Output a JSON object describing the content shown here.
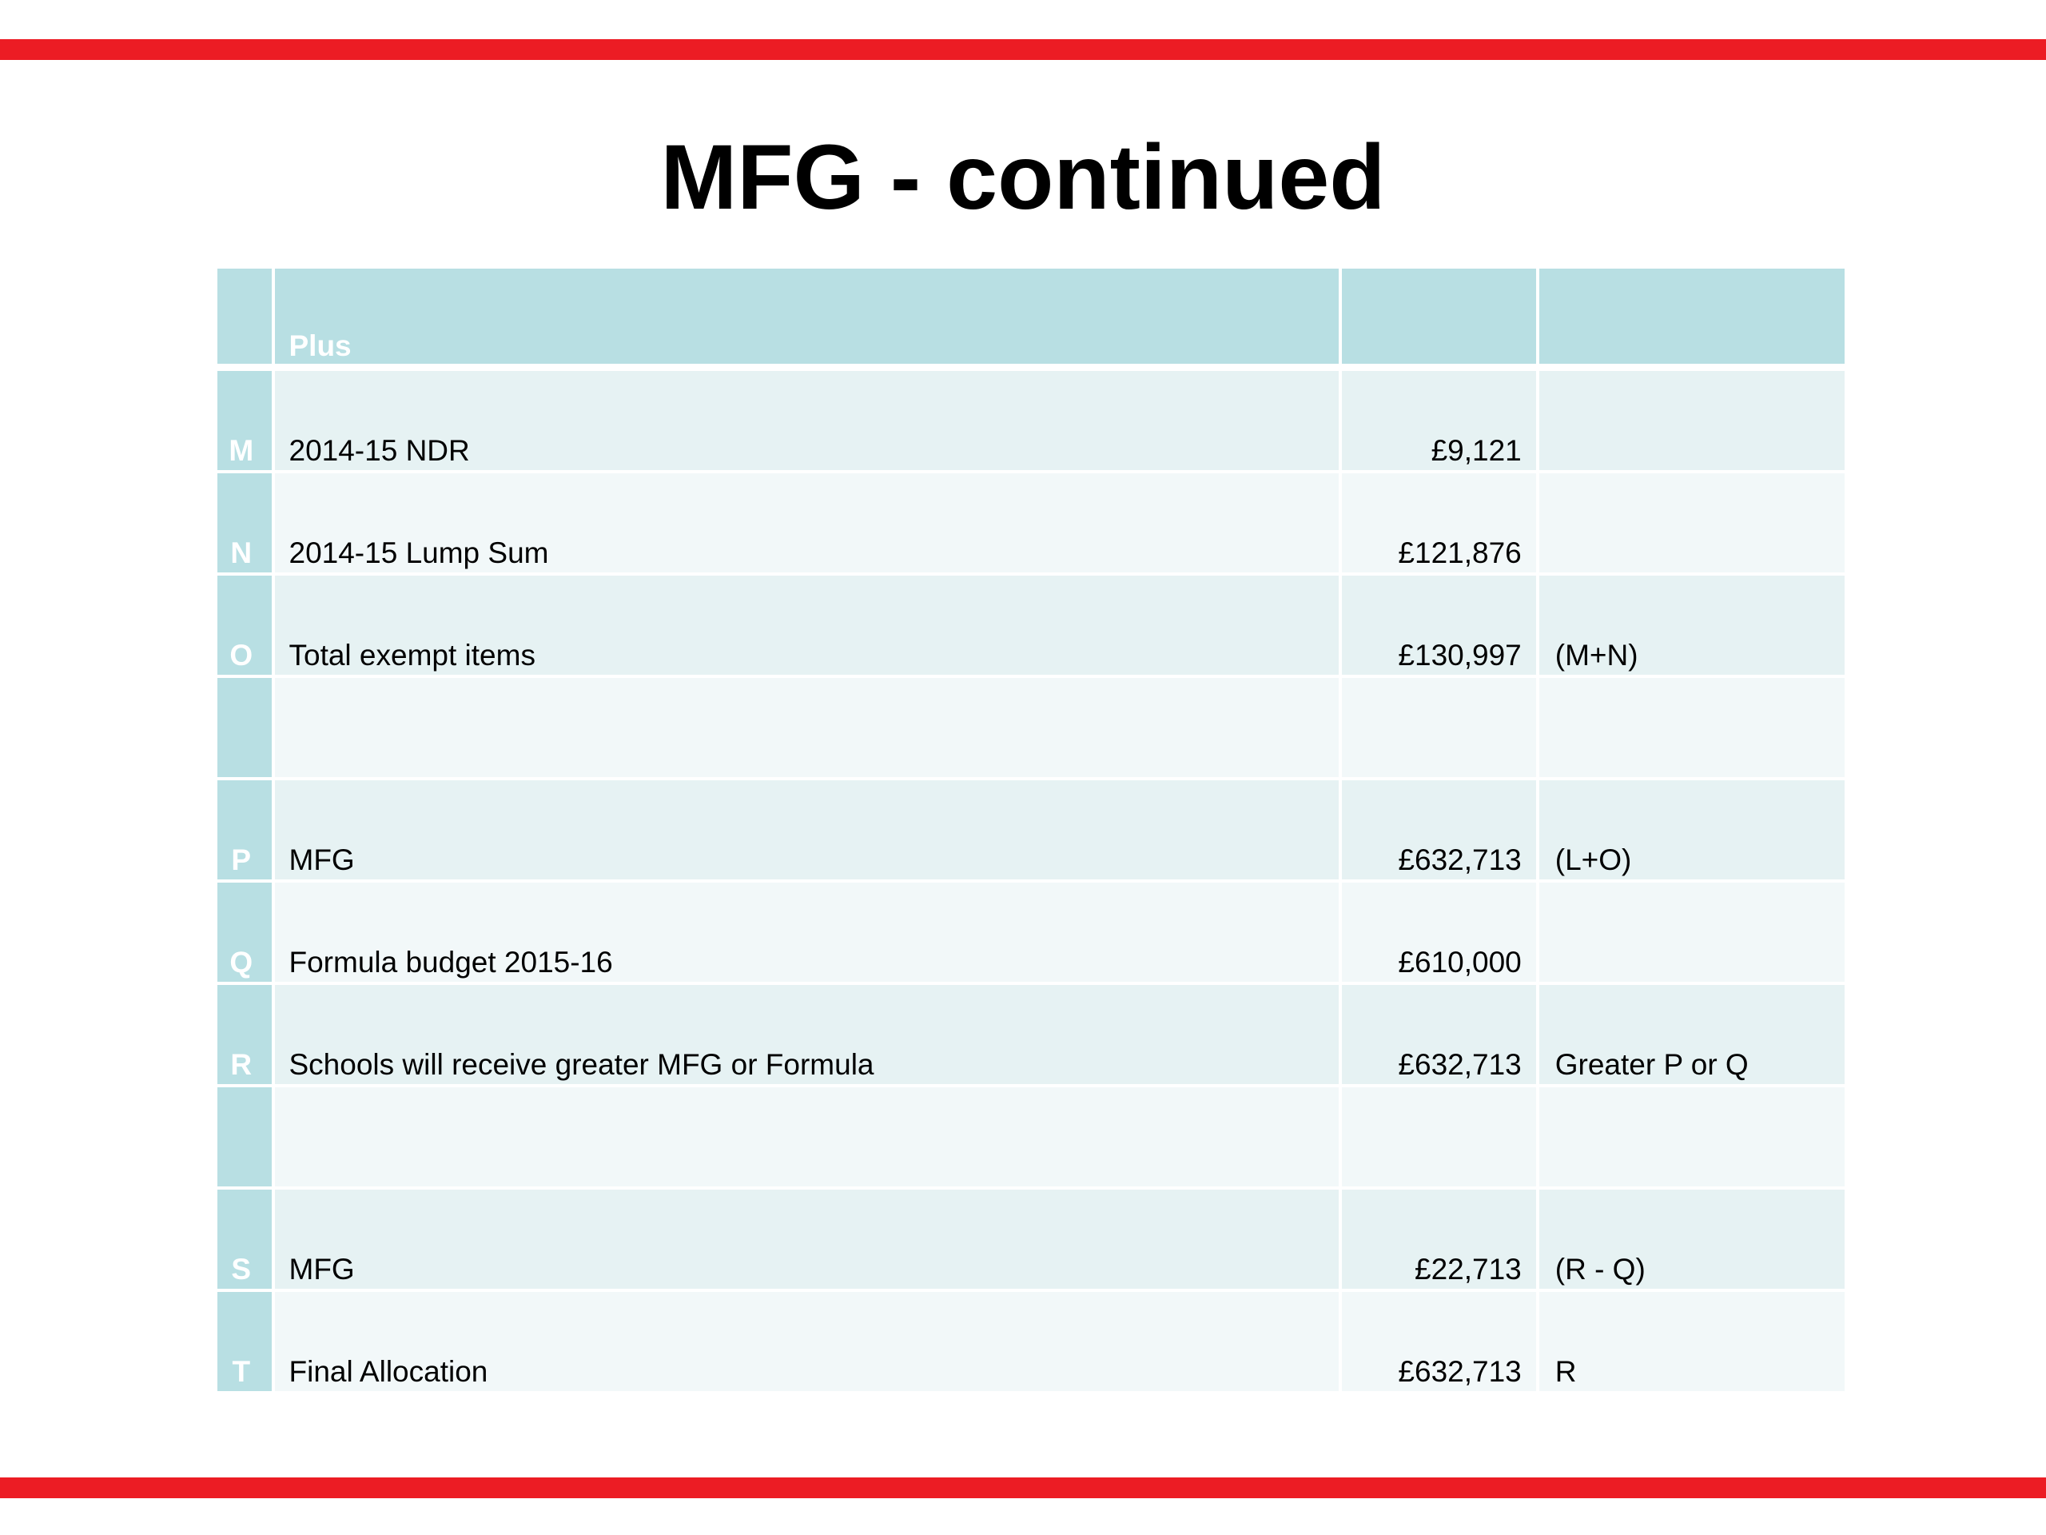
{
  "slide": {
    "title": "MFG - continued"
  },
  "table": {
    "header": {
      "letter": "",
      "label": "Plus",
      "value": "",
      "note": ""
    },
    "rows": [
      {
        "letter": "M",
        "label": "2014-15  NDR",
        "value": "£9,121",
        "note": ""
      },
      {
        "letter": "N",
        "label": "2014-15 Lump Sum",
        "value": "£121,876",
        "note": ""
      },
      {
        "letter": "O",
        "label": "Total exempt items",
        "value": "£130,997",
        "note": "(M+N)"
      },
      {
        "letter": "",
        "label": "",
        "value": "",
        "note": ""
      },
      {
        "letter": "P",
        "label": "MFG",
        "value": "£632,713",
        "note": "(L+O)"
      },
      {
        "letter": "Q",
        "label": "Formula budget 2015-16",
        "value": "£610,000",
        "note": ""
      },
      {
        "letter": "R",
        "label": "Schools will receive greater MFG or Formula",
        "value": "£632,713",
        "note": "Greater P or Q"
      },
      {
        "letter": "",
        "label": "",
        "value": "",
        "note": ""
      },
      {
        "letter": "S",
        "label": "MFG",
        "value": "£22,713",
        "note": "(R - Q)"
      },
      {
        "letter": "T",
        "label": "Final Allocation",
        "value": "£632,713",
        "note": "R"
      }
    ]
  },
  "colors": {
    "accent_red": "#ec1c24",
    "header_teal": "#b8dfe3",
    "row_band_dark": "#e6f2f3",
    "row_band_light": "#f2f8f9"
  }
}
